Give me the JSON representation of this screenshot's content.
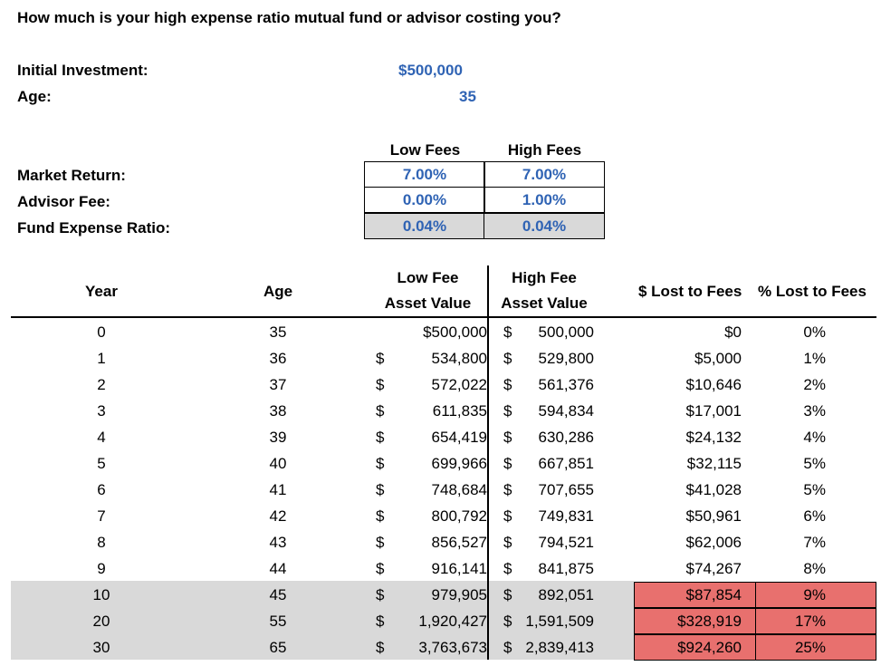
{
  "title": "How much is your high expense ratio mutual fund or advisor costing you?",
  "inputs": {
    "initial_investment_label": "Initial Investment:",
    "initial_investment_value": "$500,000",
    "age_label": "Age:",
    "age_value": "35"
  },
  "assumptions": {
    "col_low": "Low Fees",
    "col_high": "High Fees",
    "rows": [
      {
        "label": "Market Return:",
        "low": "7.00%",
        "high": "7.00%",
        "shaded": false
      },
      {
        "label": "Advisor Fee:",
        "low": "0.00%",
        "high": "1.00%",
        "shaded": false
      },
      {
        "label": "Fund Expense Ratio:",
        "low": "0.04%",
        "high": "0.04%",
        "shaded": true
      }
    ]
  },
  "table": {
    "headers": {
      "year": "Year",
      "age": "Age",
      "low_line1": "Low Fee",
      "low_line2": "Asset Value",
      "high_line1": "High Fee",
      "high_line2": "Asset Value",
      "lost": "$ Lost to Fees",
      "pct": "% Lost to Fees"
    },
    "rows": [
      {
        "year": "0",
        "age": "35",
        "low_sym": "",
        "low": "$500,000",
        "high_sym": "$",
        "high": "500,000",
        "lost": "$0",
        "pct": "0%"
      },
      {
        "year": "1",
        "age": "36",
        "low_sym": "$",
        "low": "534,800",
        "high_sym": "$",
        "high": "529,800",
        "lost": "$5,000",
        "pct": "1%"
      },
      {
        "year": "2",
        "age": "37",
        "low_sym": "$",
        "low": "572,022",
        "high_sym": "$",
        "high": "561,376",
        "lost": "$10,646",
        "pct": "2%"
      },
      {
        "year": "3",
        "age": "38",
        "low_sym": "$",
        "low": "611,835",
        "high_sym": "$",
        "high": "594,834",
        "lost": "$17,001",
        "pct": "3%"
      },
      {
        "year": "4",
        "age": "39",
        "low_sym": "$",
        "low": "654,419",
        "high_sym": "$",
        "high": "630,286",
        "lost": "$24,132",
        "pct": "4%"
      },
      {
        "year": "5",
        "age": "40",
        "low_sym": "$",
        "low": "699,966",
        "high_sym": "$",
        "high": "667,851",
        "lost": "$32,115",
        "pct": "5%"
      },
      {
        "year": "6",
        "age": "41",
        "low_sym": "$",
        "low": "748,684",
        "high_sym": "$",
        "high": "707,655",
        "lost": "$41,028",
        "pct": "5%"
      },
      {
        "year": "7",
        "age": "42",
        "low_sym": "$",
        "low": "800,792",
        "high_sym": "$",
        "high": "749,831",
        "lost": "$50,961",
        "pct": "6%"
      },
      {
        "year": "8",
        "age": "43",
        "low_sym": "$",
        "low": "856,527",
        "high_sym": "$",
        "high": "794,521",
        "lost": "$62,006",
        "pct": "7%"
      },
      {
        "year": "9",
        "age": "44",
        "low_sym": "$",
        "low": "916,141",
        "high_sym": "$",
        "high": "841,875",
        "lost": "$74,267",
        "pct": "8%"
      },
      {
        "year": "10",
        "age": "45",
        "low_sym": "$",
        "low": "979,905",
        "high_sym": "$",
        "high": "892,051",
        "lost": "$87,854",
        "pct": "9%"
      },
      {
        "year": "20",
        "age": "55",
        "low_sym": "$",
        "low": "1,920,427",
        "high_sym": "$",
        "high": "1,591,509",
        "lost": "$328,919",
        "pct": "17%"
      },
      {
        "year": "30",
        "age": "65",
        "low_sym": "$",
        "low": "3,763,673",
        "high_sym": "$",
        "high": "2,839,413",
        "lost": "$924,260",
        "pct": "25%"
      }
    ]
  },
  "colors": {
    "input_blue": "#2f63b4",
    "shade_gray": "#d9d9d9",
    "highlight_red": "#e8706e"
  }
}
